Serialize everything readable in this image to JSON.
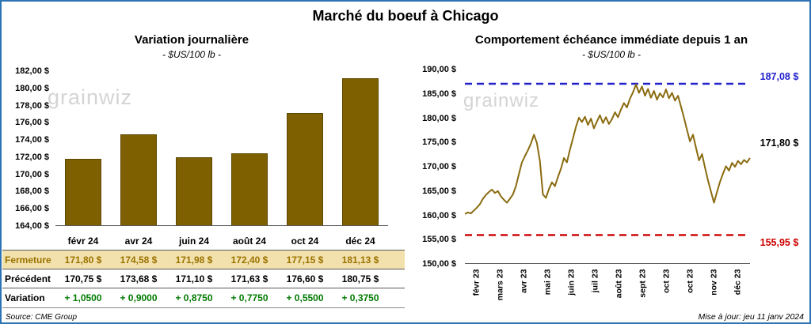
{
  "page": {
    "title": "Marché du boeuf à Chicago",
    "source": "Source: CME Group",
    "updated": "Mise à jour: jeu 11 janv 2024",
    "watermark": "grainwiz",
    "frame_border_color": "#2E74B5"
  },
  "chart_data": [
    {
      "type": "bar",
      "title": "Variation journalière",
      "subtitle": "- $US/100 lb -",
      "categories": [
        "févr 24",
        "avr 24",
        "juin 24",
        "août 24",
        "oct 24",
        "déc 24"
      ],
      "values": [
        171.8,
        174.58,
        171.98,
        172.4,
        177.15,
        181.13
      ],
      "ylim": [
        164,
        182
      ],
      "ystep": 2,
      "grid": false,
      "y_ticks": [
        "182,00 $",
        "180,00 $",
        "178,00 $",
        "176,00 $",
        "174,00 $",
        "172,00 $",
        "170,00 $",
        "168,00 $",
        "166,00 $",
        "164,00 $"
      ],
      "bar_color": "#7F6000",
      "table": {
        "rows": [
          {
            "key": "fermeture",
            "label": "Fermeture",
            "values": [
              "171,80 $",
              "174,58 $",
              "171,98 $",
              "172,40 $",
              "177,15 $",
              "181,13 $"
            ]
          },
          {
            "key": "precedent",
            "label": "Précédent",
            "values": [
              "170,75 $",
              "173,68 $",
              "171,10 $",
              "171,63 $",
              "176,60 $",
              "180,75 $"
            ]
          },
          {
            "key": "variation",
            "label": "Variation",
            "values": [
              "+ 1,0500",
              "+ 0,9000",
              "+ 0,8750",
              "+ 0,7750",
              "+ 0,5500",
              "+ 0,3750"
            ]
          }
        ]
      }
    },
    {
      "type": "line",
      "title": "Comportement échéance immédiate depuis 1 an",
      "subtitle": "- $US/100 lb -",
      "x_labels": [
        "févr 23",
        "mars 23",
        "avr 23",
        "mai 23",
        "juin 23",
        "juil 23",
        "août 23",
        "sept 23",
        "oct 23",
        "oct 23",
        "nov 23",
        "déc 23"
      ],
      "ylim": [
        150,
        190
      ],
      "ystep": 5,
      "grid": false,
      "y_ticks": [
        "190,00 $",
        "185,00 $",
        "180,00 $",
        "175,00 $",
        "170,00 $",
        "165,00 $",
        "160,00 $",
        "155,00 $",
        "150,00 $"
      ],
      "line_color": "#8A6B0F",
      "last_value": 171.8,
      "last_value_label": "171,80 $",
      "ref_lines": [
        {
          "name": "high",
          "value": 187.08,
          "label": "187,08 $",
          "color": "#2222CC",
          "style": "dashed"
        },
        {
          "name": "low",
          "value": 155.95,
          "label": "155,95 $",
          "color": "#CC0000",
          "style": "dashed"
        }
      ],
      "series": [
        {
          "name": "échéance immédiate",
          "values": [
            160.3,
            160.6,
            160.4,
            161.0,
            161.6,
            162.3,
            163.4,
            164.2,
            164.8,
            165.3,
            164.6,
            165.0,
            163.9,
            163.2,
            162.6,
            163.4,
            164.3,
            166.0,
            168.5,
            170.9,
            172.2,
            173.4,
            174.8,
            176.6,
            174.9,
            171.2,
            164.3,
            163.6,
            165.4,
            166.8,
            166.0,
            167.9,
            169.6,
            171.8,
            170.9,
            173.5,
            175.8,
            178.2,
            180.1,
            179.2,
            180.3,
            178.6,
            179.9,
            177.9,
            179.3,
            180.6,
            179.0,
            180.2,
            178.8,
            179.8,
            181.2,
            180.2,
            181.8,
            183.1,
            182.2,
            184.0,
            185.3,
            186.9,
            185.2,
            186.5,
            184.6,
            186.0,
            184.2,
            185.6,
            183.8,
            185.1,
            184.3,
            185.9,
            184.1,
            185.2,
            183.6,
            184.6,
            182.4,
            180.1,
            177.6,
            175.2,
            176.6,
            173.9,
            171.3,
            172.6,
            169.8,
            167.2,
            164.9,
            162.6,
            164.8,
            166.9,
            168.6,
            170.1,
            169.2,
            170.8,
            170.0,
            171.2,
            170.5,
            171.4,
            170.9,
            171.8
          ]
        }
      ]
    }
  ]
}
